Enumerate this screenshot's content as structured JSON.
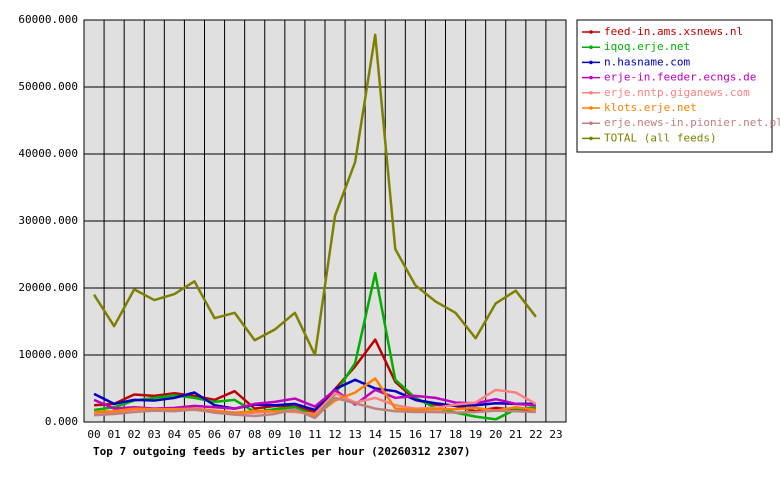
{
  "chart_data": {
    "type": "line",
    "title": "Top 7 outgoing feeds by articles per hour (20260312 2307)",
    "categories": [
      "00",
      "01",
      "02",
      "03",
      "04",
      "05",
      "06",
      "07",
      "08",
      "09",
      "10",
      "11",
      "12",
      "13",
      "14",
      "15",
      "16",
      "17",
      "18",
      "19",
      "20",
      "21",
      "22",
      "23"
    ],
    "ylim": [
      0,
      60000
    ],
    "yticks": [
      {
        "value": 0,
        "label": "0.000"
      },
      {
        "value": 10000,
        "label": "10000.000"
      },
      {
        "value": 20000,
        "label": "20000.000"
      },
      {
        "value": 30000,
        "label": "30000.000"
      },
      {
        "value": 40000,
        "label": "40000.000"
      },
      {
        "value": 50000,
        "label": "50000.000"
      },
      {
        "value": 60000,
        "label": "60000.000"
      }
    ],
    "grid": true,
    "legend": "right",
    "series": [
      {
        "name": "feed-in.ams.xsnews.nl",
        "color": "#c00000",
        "values": [
          2500,
          2700,
          4100,
          3900,
          4300,
          3900,
          3300,
          4600,
          2000,
          2400,
          2300,
          1500,
          4900,
          8300,
          12300,
          6000,
          3300,
          2600,
          2400,
          1600,
          2100,
          1800,
          1900,
          null
        ]
      },
      {
        "name": "iqoq.erje.net",
        "color": "#00b000",
        "values": [
          1800,
          2200,
          3200,
          3600,
          4000,
          3600,
          3000,
          3300,
          1500,
          1900,
          2200,
          1000,
          4200,
          8800,
          22200,
          6300,
          3600,
          2100,
          1400,
          800,
          400,
          1900,
          2200,
          null
        ]
      },
      {
        "name": "n.hasname.com",
        "color": "#0000c0",
        "values": [
          4200,
          2700,
          3300,
          3200,
          3600,
          4400,
          2500,
          2000,
          2600,
          2500,
          2700,
          1800,
          4900,
          6300,
          5000,
          4600,
          3300,
          2800,
          2400,
          2500,
          2800,
          2700,
          2700,
          null
        ]
      },
      {
        "name": "erje-in.feeder.ecngs.de",
        "color": "#c000c0",
        "values": [
          3300,
          2000,
          2200,
          2000,
          2100,
          2400,
          2200,
          2000,
          2700,
          3000,
          3500,
          2300,
          4800,
          2600,
          4800,
          3600,
          3900,
          3600,
          2900,
          2800,
          3400,
          2700,
          2500,
          null
        ]
      },
      {
        "name": "erje.nntp.giganews.com",
        "color": "#ff8080",
        "values": [
          1200,
          1300,
          1900,
          1700,
          1800,
          1800,
          1500,
          1200,
          1400,
          1600,
          1500,
          1200,
          4300,
          2900,
          3600,
          2500,
          2000,
          2100,
          2600,
          2900,
          4800,
          4400,
          2700,
          null
        ]
      },
      {
        "name": "klots.erje.net",
        "color": "#ff8000",
        "values": [
          1500,
          1600,
          2000,
          1900,
          1900,
          2000,
          1700,
          1400,
          1600,
          1600,
          1700,
          900,
          3200,
          4400,
          6500,
          2000,
          1800,
          1900,
          1900,
          2100,
          1700,
          2200,
          1800,
          null
        ]
      },
      {
        "name": "erje.news-in.pionier.net.pl",
        "color": "#c08080",
        "values": [
          1000,
          1200,
          1500,
          1700,
          1600,
          1900,
          1400,
          1100,
          900,
          1200,
          1900,
          600,
          3600,
          2800,
          2000,
          1600,
          1500,
          1500,
          1400,
          1500,
          1700,
          1600,
          1500,
          null
        ]
      },
      {
        "name": "TOTAL (all feeds)",
        "color": "#808000",
        "values": [
          19000,
          14300,
          19800,
          18200,
          19100,
          21000,
          15500,
          16300,
          12200,
          13800,
          16300,
          10000,
          30800,
          38800,
          57800,
          25800,
          20400,
          18000,
          16300,
          12500,
          17700,
          19600,
          15700,
          null
        ]
      }
    ]
  }
}
